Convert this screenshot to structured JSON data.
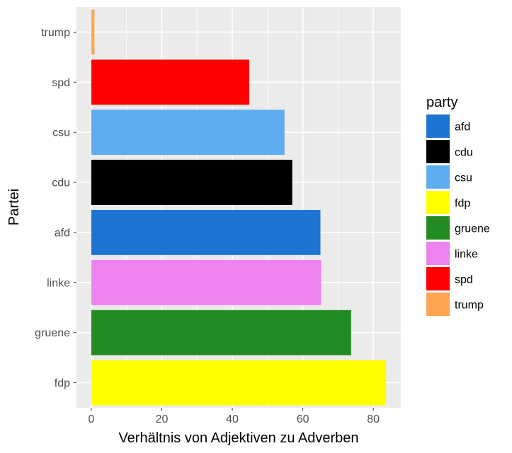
{
  "chart_data": {
    "type": "bar",
    "orientation": "horizontal",
    "xlabel": "Verhältnis von Adjektiven zu Adverben",
    "ylabel": "Partei",
    "xlim": [
      -4.2,
      87.8
    ],
    "x_ticks": [
      "0",
      "20",
      "40",
      "60",
      "80"
    ],
    "grid": true,
    "categories": [
      "fdp",
      "gruene",
      "linke",
      "afd",
      "cdu",
      "csu",
      "spd",
      "trump"
    ],
    "values": [
      83.6,
      73.7,
      65.2,
      65.0,
      57.0,
      54.8,
      44.8,
      0.9
    ],
    "colors": [
      "#ffff00",
      "#228b22",
      "#ee82ee",
      "#1c75d0",
      "#000000",
      "#5eadee",
      "#ff0000",
      "#ffa552"
    ],
    "legend": {
      "title": "party",
      "placement": "right",
      "items": [
        {
          "label": "afd",
          "color": "#1c75d0"
        },
        {
          "label": "cdu",
          "color": "#000000"
        },
        {
          "label": "csu",
          "color": "#5eadee"
        },
        {
          "label": "fdp",
          "color": "#ffff00"
        },
        {
          "label": "gruene",
          "color": "#228b22"
        },
        {
          "label": "linke",
          "color": "#ee82ee"
        },
        {
          "label": "spd",
          "color": "#ff0000"
        },
        {
          "label": "trump",
          "color": "#ffa552"
        }
      ]
    }
  }
}
